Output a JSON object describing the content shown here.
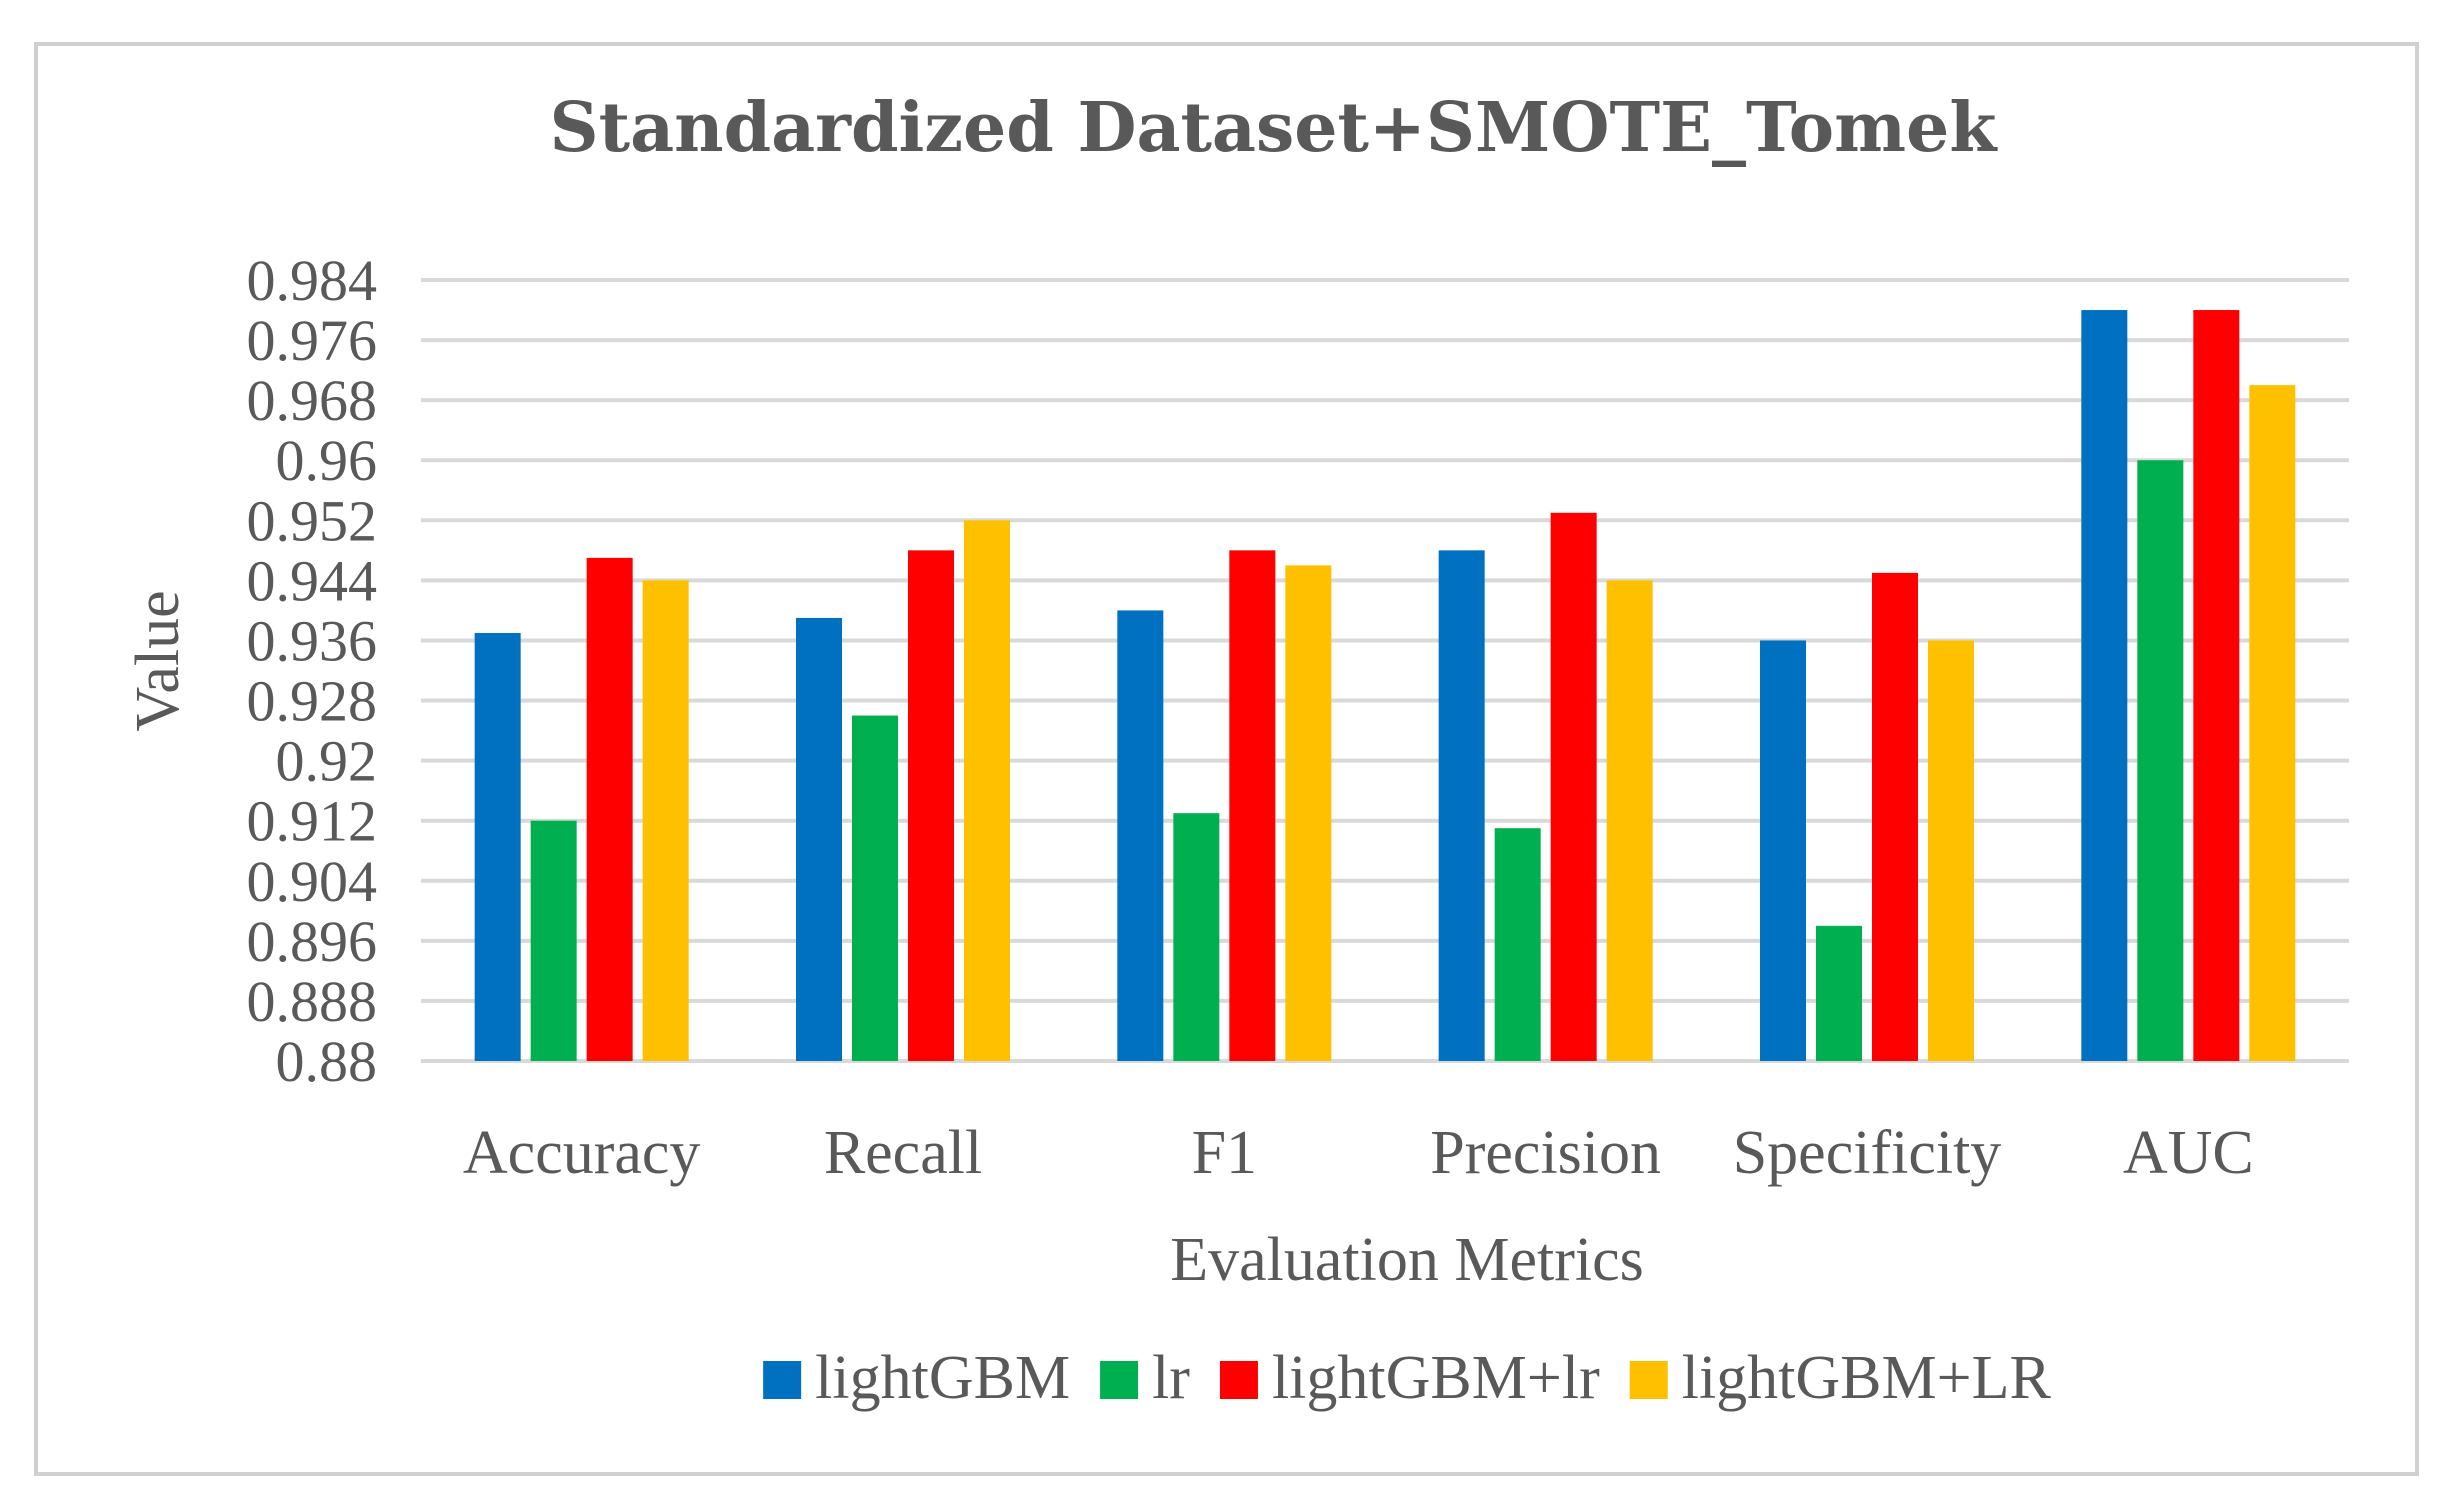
{
  "chart_data": {
    "type": "bar",
    "title": "Standardized Dataset+SMOTE_Tomek",
    "xlabel": "Evaluation Metrics",
    "ylabel": "Value",
    "ylim": [
      0.88,
      0.984
    ],
    "yticks": [
      0.88,
      0.888,
      0.896,
      0.904,
      0.912,
      0.92,
      0.928,
      0.936,
      0.944,
      0.952,
      0.96,
      0.968,
      0.976,
      0.984
    ],
    "ytick_labels": [
      "0.88",
      "0.888",
      "0.896",
      "0.904",
      "0.912",
      "0.92",
      "0.928",
      "0.936",
      "0.944",
      "0.952",
      "0.96",
      "0.968",
      "0.976",
      "0.984"
    ],
    "grid": true,
    "legend_position": "bottom",
    "categories": [
      "Accuracy",
      "Recall",
      "F1",
      "Precision",
      "Specificity",
      "AUC"
    ],
    "series": [
      {
        "name": "lightGBM",
        "color": "#0070C0",
        "values": [
          0.937,
          0.939,
          0.94,
          0.948,
          0.936,
          0.98
        ]
      },
      {
        "name": "lr",
        "color": "#00B050",
        "values": [
          0.912,
          0.926,
          0.913,
          0.911,
          0.898,
          0.96
        ]
      },
      {
        "name": "lightGBM+lr",
        "color": "#FF0000",
        "values": [
          0.947,
          0.948,
          0.948,
          0.953,
          0.945,
          0.98
        ]
      },
      {
        "name": "lightGBM+LR",
        "color": "#FFC000",
        "values": [
          0.944,
          0.952,
          0.946,
          0.944,
          0.936,
          0.97
        ]
      }
    ]
  }
}
